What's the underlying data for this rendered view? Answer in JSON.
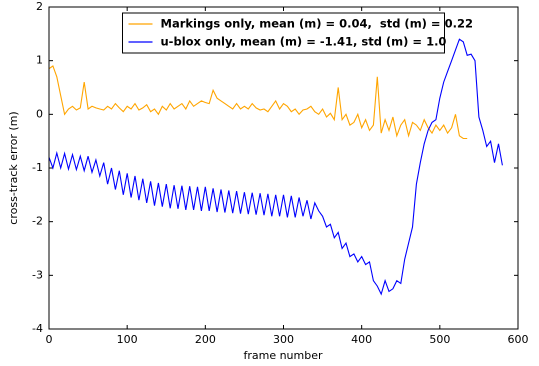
{
  "chart_data": {
    "type": "line",
    "xlabel": "frame number",
    "ylabel": "cross-track error (m)",
    "xlim": [
      0,
      600
    ],
    "ylim": [
      -4,
      2
    ],
    "xticks": [
      0,
      100,
      200,
      300,
      400,
      500,
      600
    ],
    "yticks": [
      -4,
      -3,
      -2,
      -1,
      0,
      1,
      2
    ],
    "legend": "upper center",
    "x": [
      0,
      5,
      10,
      15,
      20,
      25,
      30,
      35,
      40,
      45,
      50,
      55,
      60,
      65,
      70,
      75,
      80,
      85,
      90,
      95,
      100,
      105,
      110,
      115,
      120,
      125,
      130,
      135,
      140,
      145,
      150,
      155,
      160,
      165,
      170,
      175,
      180,
      185,
      190,
      195,
      200,
      205,
      210,
      215,
      220,
      225,
      230,
      235,
      240,
      245,
      250,
      255,
      260,
      265,
      270,
      275,
      280,
      285,
      290,
      295,
      300,
      305,
      310,
      315,
      320,
      325,
      330,
      335,
      340,
      345,
      350,
      355,
      360,
      365,
      370,
      375,
      380,
      385,
      390,
      395,
      400,
      405,
      410,
      415,
      420,
      425,
      430,
      435,
      440,
      445,
      450,
      455,
      460,
      465,
      470,
      475,
      480,
      485,
      490,
      495,
      500,
      505,
      510,
      515,
      520,
      525,
      530,
      535,
      540,
      545,
      550,
      555,
      560,
      565,
      570,
      575,
      580
    ],
    "series": [
      {
        "name": "Markings only, mean (m) = 0.04,  std (m) = 0.22",
        "color": "#ffa500",
        "values": [
          0.85,
          0.9,
          0.7,
          0.35,
          0.0,
          0.1,
          0.15,
          0.08,
          0.12,
          0.6,
          0.1,
          0.15,
          0.12,
          0.1,
          0.08,
          0.15,
          0.1,
          0.2,
          0.12,
          0.05,
          0.15,
          0.1,
          0.2,
          0.08,
          0.12,
          0.18,
          0.05,
          0.1,
          0.0,
          0.15,
          0.08,
          0.2,
          0.1,
          0.15,
          0.2,
          0.1,
          0.25,
          0.15,
          0.2,
          0.25,
          0.22,
          0.2,
          0.45,
          0.3,
          0.25,
          0.2,
          0.15,
          0.1,
          0.2,
          0.1,
          0.15,
          0.1,
          0.2,
          0.12,
          0.08,
          0.1,
          0.05,
          0.15,
          0.25,
          0.1,
          0.2,
          0.15,
          0.05,
          0.1,
          0.0,
          0.08,
          0.1,
          0.15,
          0.05,
          0.0,
          0.1,
          -0.05,
          0.02,
          -0.1,
          0.5,
          -0.1,
          0.0,
          -0.2,
          -0.15,
          0.0,
          -0.25,
          -0.1,
          -0.3,
          -0.2,
          0.7,
          -0.35,
          -0.1,
          -0.3,
          -0.05,
          -0.4,
          -0.2,
          -0.1,
          -0.4,
          -0.15,
          -0.2,
          -0.3,
          -0.1,
          -0.25,
          -0.35,
          -0.2,
          -0.3,
          -0.2,
          -0.35,
          -0.25,
          0.0,
          -0.4,
          -0.45,
          -0.45,
          null,
          null,
          null,
          null,
          null,
          null,
          null,
          null,
          null
        ]
      },
      {
        "name": "u-blox only, mean (m) = -1.41, std (m) = 1.0",
        "color": "#0000ff",
        "values": [
          -0.8,
          -1.0,
          -0.72,
          -1.0,
          -0.73,
          -1.02,
          -0.75,
          -1.03,
          -0.78,
          -1.05,
          -0.78,
          -1.08,
          -0.85,
          -1.15,
          -0.9,
          -1.3,
          -1.0,
          -1.4,
          -1.05,
          -1.5,
          -1.1,
          -1.55,
          -1.15,
          -1.6,
          -1.2,
          -1.65,
          -1.25,
          -1.7,
          -1.28,
          -1.72,
          -1.3,
          -1.75,
          -1.32,
          -1.76,
          -1.33,
          -1.78,
          -1.34,
          -1.78,
          -1.35,
          -1.8,
          -1.35,
          -1.8,
          -1.38,
          -1.82,
          -1.4,
          -1.83,
          -1.42,
          -1.84,
          -1.43,
          -1.85,
          -1.45,
          -1.86,
          -1.46,
          -1.87,
          -1.47,
          -1.88,
          -1.48,
          -1.9,
          -1.5,
          -1.9,
          -1.5,
          -1.92,
          -1.52,
          -1.92,
          -1.55,
          -1.9,
          -1.6,
          -1.95,
          -1.65,
          -1.8,
          -1.9,
          -2.1,
          -2.05,
          -2.3,
          -2.2,
          -2.5,
          -2.4,
          -2.65,
          -2.6,
          -2.75,
          -2.65,
          -2.8,
          -2.75,
          -3.1,
          -3.2,
          -3.35,
          -3.1,
          -3.3,
          -3.25,
          -3.1,
          -3.15,
          -2.7,
          -2.4,
          -2.1,
          -1.3,
          -0.9,
          -0.55,
          -0.3,
          -0.15,
          -0.1,
          0.3,
          0.6,
          0.8,
          1.0,
          1.2,
          1.4,
          1.35,
          1.1,
          1.12,
          1.0,
          -0.05,
          -0.3,
          -0.6,
          -0.5,
          -0.9,
          -0.55,
          -0.95
        ]
      }
    ]
  }
}
